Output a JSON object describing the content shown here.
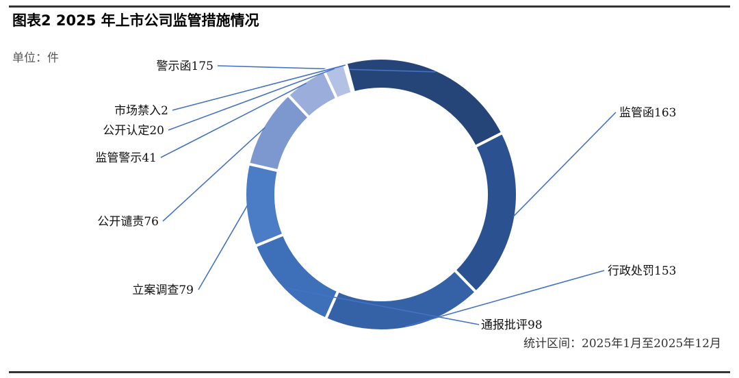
{
  "header": {
    "title": "图表2  2025 年上市公司监管措施情况",
    "unit": "单位：件"
  },
  "footer": {
    "source": "统计区间：2025年1月至2025年12月"
  },
  "chart_data": {
    "type": "pie",
    "variant": "donut",
    "title": "",
    "categories": [
      "警示函",
      "监管函",
      "行政处罚",
      "通报批评",
      "立案调查",
      "公开谴责",
      "监管警示",
      "公开认定",
      "市场禁入"
    ],
    "values": [
      175,
      163,
      153,
      98,
      79,
      76,
      41,
      20,
      2
    ],
    "labels": [
      "警示函175",
      "监管函163",
      "行政处罚153",
      "通报批评98",
      "立案调查79",
      "公开谴责76",
      "监管警示41",
      "公开认定20",
      "市场禁入2"
    ],
    "colors": [
      "#254478",
      "#2b5191",
      "#3561a6",
      "#3e6fb9",
      "#4a7dc6",
      "#7d97cf",
      "#9aaddb",
      "#b3c1e5",
      "#c9d3ee"
    ],
    "start_angle_deg": -15,
    "direction": "clockwise",
    "legend": "none",
    "leader_color": "#4472c4"
  }
}
